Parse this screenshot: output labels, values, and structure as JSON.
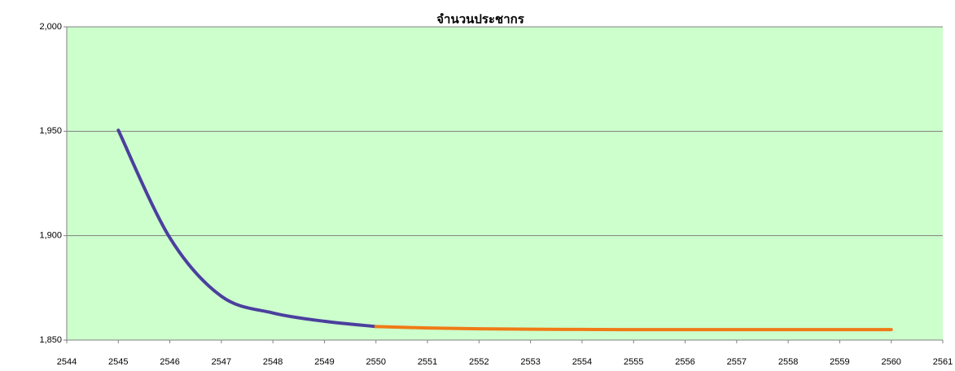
{
  "chart_data": {
    "type": "line",
    "title": "จำนวนประชากร",
    "x": [
      2545,
      2546,
      2547,
      2548,
      2549,
      2550,
      2551,
      2552,
      2553,
      2554,
      2555,
      2556,
      2557,
      2558,
      2559,
      2560
    ],
    "series": [
      {
        "color": "#4b3f9e",
        "values": [
          1950.5,
          1899,
          1871,
          1863,
          1859,
          1856.5,
          null,
          null,
          null,
          null,
          null,
          null,
          null,
          null,
          null,
          null
        ]
      },
      {
        "color": "#f07a16",
        "values": [
          null,
          null,
          null,
          null,
          null,
          1856.5,
          1855.8,
          1855.4,
          1855.2,
          1855.1,
          1855,
          1855,
          1855,
          1855,
          1855,
          1855
        ]
      }
    ],
    "xlim": [
      2544,
      2561
    ],
    "xticks": [
      2544,
      2545,
      2546,
      2547,
      2548,
      2549,
      2550,
      2551,
      2552,
      2553,
      2554,
      2555,
      2556,
      2557,
      2558,
      2559,
      2560,
      2561
    ],
    "ylim": [
      1850,
      2000
    ],
    "yticks": [
      {
        "value": 1850,
        "label": "1,850"
      },
      {
        "value": 1900,
        "label": "1,900"
      },
      {
        "value": 1950,
        "label": "1,950"
      },
      {
        "value": 2000,
        "label": "2,000"
      }
    ],
    "grid": true,
    "background": "#ccffcc"
  }
}
